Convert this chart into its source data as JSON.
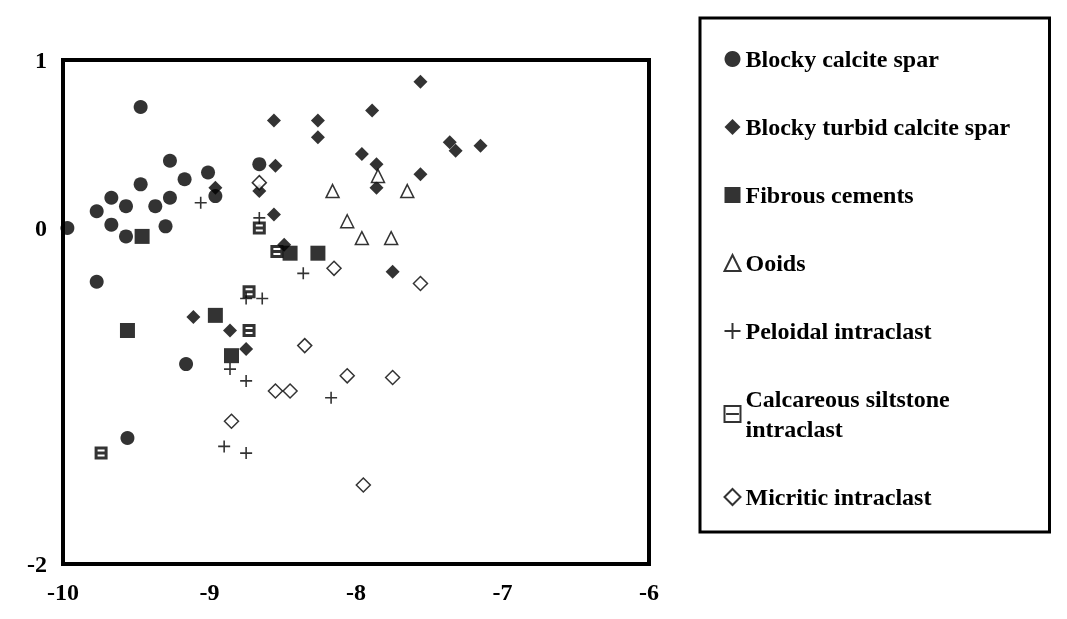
{
  "chart_data": {
    "type": "scatter",
    "xlim": [
      -10,
      -6
    ],
    "ylim": [
      -2,
      1
    ],
    "xticks": [
      -10,
      -9,
      -8,
      -7,
      -6
    ],
    "yticks": [
      -2,
      0,
      1
    ],
    "grid": false,
    "legend": "right",
    "series": [
      {
        "name": "Blocky calcite spar",
        "color": "#000000",
        "marker": "circle",
        "x": [
          -9.47,
          -9.27,
          -8.66,
          -9.01,
          -9.17,
          -9.47,
          -9.67,
          -9.57,
          -9.37,
          -9.27,
          -8.96,
          -9.77,
          -9.67,
          -9.97,
          -9.3,
          -9.57,
          -9.77,
          -9.16,
          -9.56
        ],
        "values": [
          0.72,
          0.4,
          0.38,
          0.33,
          0.29,
          0.26,
          0.18,
          0.13,
          0.13,
          0.18,
          0.19,
          0.1,
          0.02,
          0,
          0.01,
          -0.05,
          -0.32,
          -0.81,
          -1.25
        ]
      },
      {
        "name": "Blocky turbid calcite spar",
        "color": "#000000",
        "marker": "diamond",
        "x": [
          -8.56,
          -8.26,
          -8.26,
          -8.55,
          -8.96,
          -8.66,
          -8.56,
          -8.49,
          -7.56,
          -7.89,
          -7.36,
          -7.32,
          -7.15,
          -7.96,
          -7.86,
          -7.86,
          -7.56,
          -7.75,
          -9.11,
          -8.86,
          -8.75
        ],
        "values": [
          0.64,
          0.64,
          0.54,
          0.37,
          0.24,
          0.22,
          0.08,
          -0.1,
          0.87,
          0.7,
          0.51,
          0.46,
          0.49,
          0.44,
          0.38,
          0.24,
          0.32,
          -0.26,
          -0.53,
          -0.61,
          -0.72
        ]
      },
      {
        "name": "Fibrous cements",
        "color": "#000000",
        "marker": "square",
        "x": [
          -9.46,
          -8.45,
          -8.26,
          -8.96,
          -9.56,
          -8.85
        ],
        "values": [
          -0.05,
          -0.15,
          -0.15,
          -0.52,
          -0.61,
          -0.76
        ]
      },
      {
        "name": "Ooids",
        "color": "#ffffff",
        "marker": "triangle",
        "x": [
          -8.16,
          -8.06,
          -7.85,
          -7.65,
          -7.96,
          -7.76
        ],
        "values": [
          0.22,
          0.04,
          0.31,
          0.22,
          -0.06,
          -0.06
        ]
      },
      {
        "name": "Peloidal intraclast",
        "color": "#000000",
        "marker": "cross",
        "x": [
          -9.06,
          -8.66,
          -8.36,
          -8.75,
          -8.64,
          -8.86,
          -8.75,
          -8.17,
          -8.9,
          -8.75
        ],
        "values": [
          0.15,
          0.06,
          -0.27,
          -0.42,
          -0.42,
          -0.84,
          -0.91,
          -1.01,
          -1.3,
          -1.34
        ]
      },
      {
        "name": "Calcareous siltstone intraclast",
        "color": "#000000",
        "x": [
          -8.66,
          -8.54,
          -8.73,
          -8.73,
          -9.74
        ],
        "values": [
          0,
          -0.14,
          -0.38,
          -0.61,
          -1.34
        ]
      },
      {
        "name": "Micritic intraclast",
        "color": "#ffffff",
        "marker": "diamond",
        "x": [
          -8.66,
          -8.15,
          -7.56,
          -8.35,
          -8.06,
          -7.75,
          -8.55,
          -8.45,
          -8.85,
          -7.95
        ],
        "values": [
          0.27,
          -0.24,
          -0.33,
          -0.7,
          -0.88,
          -0.89,
          -0.97,
          -0.97,
          -1.15,
          -1.53
        ]
      }
    ]
  }
}
